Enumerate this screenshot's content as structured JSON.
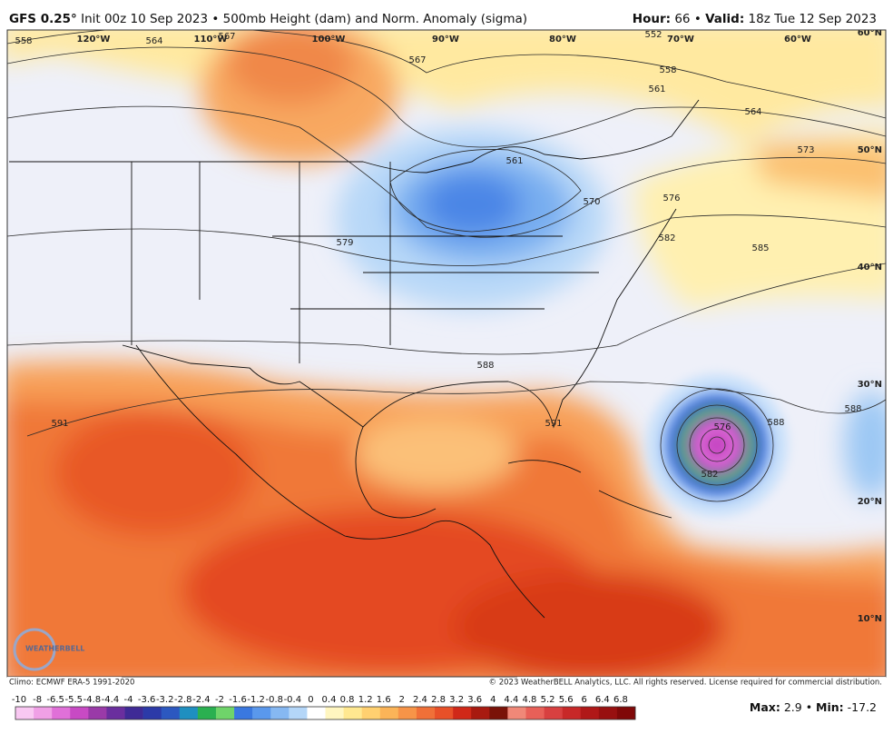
{
  "header": {
    "model": "GFS 0.25°",
    "description": "Init 00z 10 Sep 2023 • 500mb Height (dam) and Norm. Anomaly (sigma)",
    "separator": "•",
    "items": [
      {
        "label": "Hour:",
        "value": "66"
      },
      {
        "label": "Valid:",
        "value": "18z Tue 12 Sep 2023"
      }
    ]
  },
  "map": {
    "longitudes": [
      "120°W",
      "110°W",
      "100°W",
      "90°W",
      "80°W",
      "70°W",
      "60°W"
    ],
    "latitudes": [
      "60°N",
      "50°N",
      "40°N",
      "30°N",
      "20°N",
      "10°N"
    ],
    "contour_labels": [
      "558",
      "564",
      "567",
      "567",
      "552",
      "558",
      "561",
      "564",
      "573",
      "576",
      "585",
      "561",
      "570",
      "579",
      "582",
      "588",
      "591",
      "591",
      "588",
      "588",
      "576",
      "582"
    ],
    "logo": "WEATHERBELL"
  },
  "footer": {
    "climo": "Climo: ECMWF ERA-5 1991-2020",
    "copyright": "© 2023 WeatherBELL Analytics, LLC. All rights reserved. License required for commercial distribution."
  },
  "colorbar": {
    "labels": [
      "-10",
      "-8",
      "-6.5",
      "-5.5",
      "-4.8",
      "-4.4",
      "-4",
      "-3.6",
      "-3.2",
      "-2.8",
      "-2.4",
      "-2",
      "-1.6",
      "-1.2",
      "-0.8",
      "-0.4",
      "0",
      "0.4",
      "0.8",
      "1.2",
      "1.6",
      "2",
      "2.4",
      "2.8",
      "3.2",
      "3.6",
      "4",
      "4.4",
      "4.8",
      "5.2",
      "5.6",
      "6",
      "6.4",
      "6.8"
    ],
    "colors": [
      "#f9c8f2",
      "#f0a0e6",
      "#e070d8",
      "#c84ac4",
      "#9a3aa8",
      "#6a2e9e",
      "#3f2a96",
      "#2c3aa8",
      "#2c58c0",
      "#1f8fc0",
      "#2ab050",
      "#6fd46a",
      "#3a78e0",
      "#5a98ec",
      "#86b8f2",
      "#b4d6f8",
      "#ffffff",
      "#fff6c0",
      "#ffe890",
      "#ffd070",
      "#fbb458",
      "#f79448",
      "#f07038",
      "#e85028",
      "#d02818",
      "#a81a10",
      "#7a1208",
      "#f08878",
      "#e86058",
      "#d84040",
      "#c82828",
      "#b01818",
      "#981010",
      "#800808"
    ],
    "stats": [
      {
        "label": "Max:",
        "value": 2.9
      },
      {
        "label": "Min:",
        "value": -17.2
      }
    ]
  }
}
